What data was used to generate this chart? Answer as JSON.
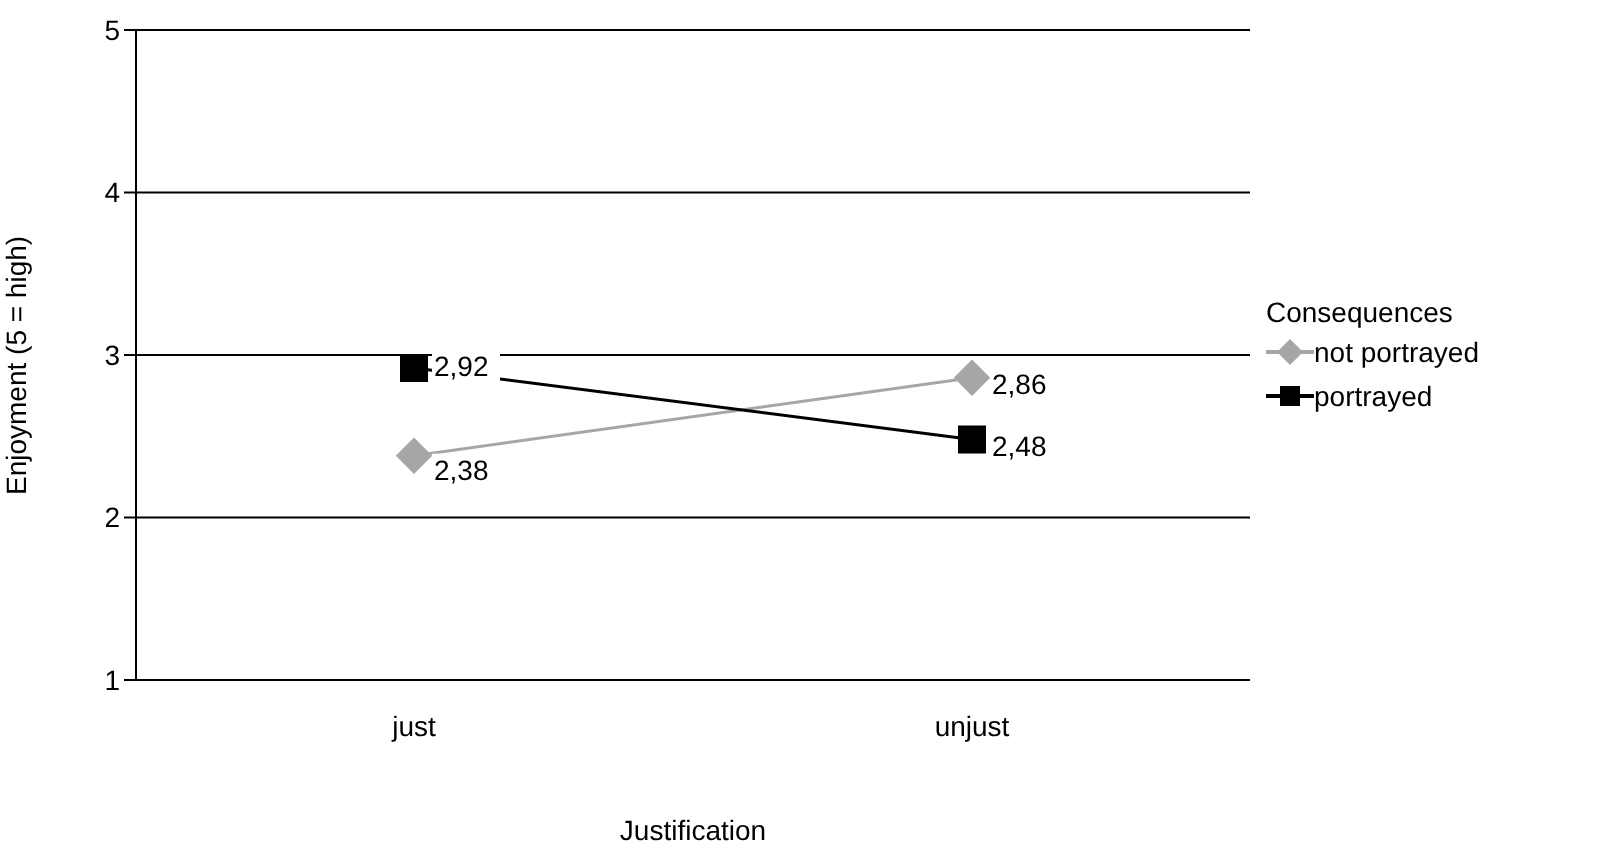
{
  "chart_data": {
    "type": "line",
    "xlabel": "Justification",
    "ylabel": "Enjoyment (5 = high)",
    "legend_title": "Consequences",
    "categories": [
      "just",
      "unjust"
    ],
    "series": [
      {
        "name": "not portrayed",
        "color": "#a6a6a6",
        "marker": "diamond",
        "values": [
          2.38,
          2.86
        ],
        "value_labels": [
          "2,38",
          "2,86"
        ]
      },
      {
        "name": "portrayed",
        "color": "#000000",
        "marker": "square",
        "values": [
          2.92,
          2.48
        ],
        "value_labels": [
          "2,92",
          "2,48"
        ]
      }
    ],
    "ylim": [
      1,
      5
    ],
    "yticks": [
      1,
      2,
      3,
      4,
      5
    ],
    "grid": "y",
    "legend": "right",
    "line_style": "solid"
  }
}
